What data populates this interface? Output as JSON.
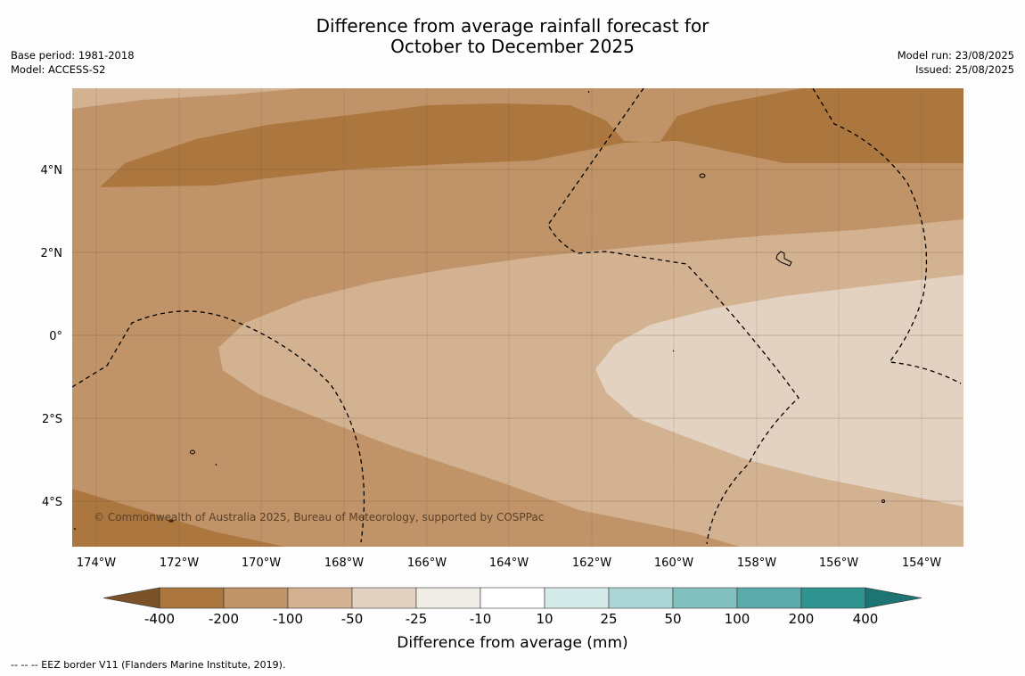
{
  "title_line1": "Difference from average rainfall forecast for",
  "title_line2": "October to December 2025",
  "base_period": "Base period: 1981-2018",
  "model": "Model: ACCESS-S2",
  "model_run": "Model run: 23/08/2025",
  "issued": "Issued: 25/08/2025",
  "copyright": "© Commonwealth of Australia 2025, Bureau of Meteorology, supported by COSPPac",
  "lat_labels": [
    "4°N",
    "2°N",
    "0°",
    "2°S",
    "4°S"
  ],
  "lon_labels": [
    "174°W",
    "172°W",
    "170°W",
    "168°W",
    "166°W",
    "164°W",
    "162°W",
    "160°W",
    "158°W",
    "156°W",
    "154°W"
  ],
  "colorbar": {
    "title": "Difference from average (mm)",
    "ticks": [
      "-400",
      "-200",
      "-100",
      "-50",
      "-25",
      "-10",
      "10",
      "25",
      "50",
      "100",
      "200",
      "400"
    ],
    "colors": [
      "#7b5128",
      "#ac773f",
      "#c09468",
      "#d3b292",
      "#e3d2c1",
      "#f0ece6",
      "#ffffff",
      "#d5ebea",
      "#acd6d5",
      "#82c0bf",
      "#59aaa8",
      "#2f9390",
      "#1e7472"
    ]
  },
  "footnote": "--  --  -- EEZ border V11 (Flanders Marine Institute, 2019)."
}
